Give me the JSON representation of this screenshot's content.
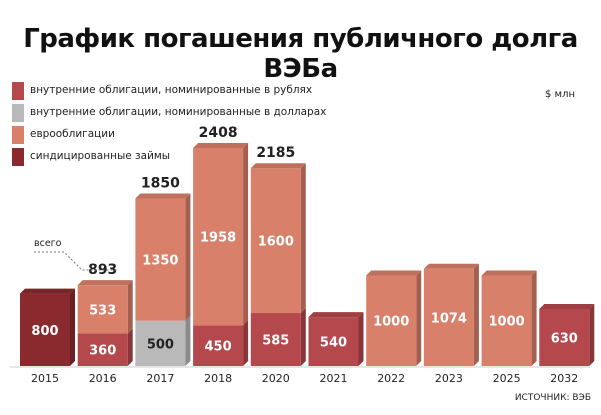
{
  "title": "График погашения публичного долга ВЭБа",
  "unit": "$ млн",
  "source": "ИСТОЧНИК: ВЭБ",
  "total_note": "всего",
  "legend": [
    {
      "label": "внутренние облигации, номинированные в рублях",
      "color": "#b4484c"
    },
    {
      "label": "внутренние облигации, номинированные в долларах",
      "color": "#b9b9b9"
    },
    {
      "label": "еврооблигации",
      "color": "#d9806b"
    },
    {
      "label": "синдицированные займы",
      "color": "#8a2a2e"
    }
  ],
  "chart_data": {
    "type": "bar",
    "stacked": true,
    "categories": [
      "2015",
      "2016",
      "2017",
      "2018",
      "2020",
      "2021",
      "2022",
      "2023",
      "2025",
      "2032"
    ],
    "series": [
      {
        "name": "внутренние облигации, номинированные в рублях",
        "color": "#b4484c",
        "values": [
          0,
          360,
          0,
          450,
          585,
          540,
          0,
          0,
          0,
          630
        ]
      },
      {
        "name": "внутренние облигации, номинированные в долларах",
        "color": "#b9b9b9",
        "values": [
          0,
          0,
          500,
          0,
          0,
          0,
          0,
          0,
          0,
          0
        ]
      },
      {
        "name": "еврооблигации",
        "color": "#d9806b",
        "values": [
          0,
          533,
          1350,
          1958,
          1600,
          0,
          1000,
          1074,
          1000,
          0
        ]
      },
      {
        "name": "синдицированные займы",
        "color": "#8a2a2e",
        "values": [
          800,
          0,
          0,
          0,
          0,
          0,
          0,
          0,
          0,
          0
        ]
      }
    ],
    "totals": [
      null,
      893,
      1850,
      2408,
      2185,
      null,
      null,
      null,
      null,
      null
    ],
    "ylim": [
      0,
      2408
    ]
  }
}
